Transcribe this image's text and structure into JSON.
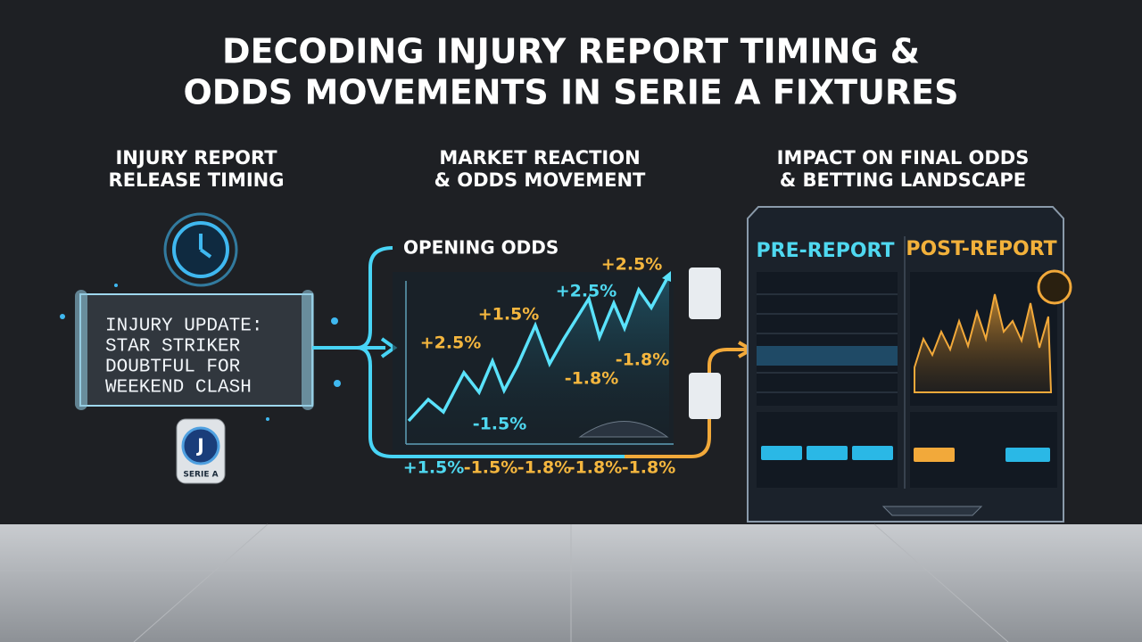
{
  "title_lines": [
    "DECODING INJURY REPORT TIMING &",
    "ODDS MOVEMENTS IN SERIE A FIXTURES"
  ],
  "sections": [
    {
      "heading_lines": [
        "INJURY REPORT",
        "RELEASE TIMING"
      ]
    },
    {
      "heading_lines": [
        "MARKET REACTION",
        "& ODDS MOVEMENT"
      ]
    },
    {
      "heading_lines": [
        "IMPACT ON FINAL ODDS",
        "& BETTING LANDSCAPE"
      ]
    }
  ],
  "injury_update": {
    "lines": [
      "INJURY UPDATE:",
      "STAR STRIKER",
      "DOUBTFUL FOR",
      "WEEKEND CLASH"
    ]
  },
  "badge": "SERIE A",
  "market_chart": {
    "label": "OPENING ODDS",
    "annotations": [
      {
        "text": "+2.5%",
        "color": "#f4b63e"
      },
      {
        "text": "+2.5%",
        "color": "#4fd8f0"
      },
      {
        "text": "+1.5%",
        "color": "#f4b63e"
      },
      {
        "text": "+2.5%",
        "color": "#f4b63e"
      },
      {
        "text": "-1.8%",
        "color": "#f4b63e"
      },
      {
        "text": "-1.8%",
        "color": "#f4b63e"
      },
      {
        "text": "-1.5%",
        "color": "#4fd8f0"
      }
    ],
    "bottom_row": [
      {
        "text": "+1.5%",
        "color": "#4fd8f0"
      },
      {
        "text": "-1.5%",
        "color": "#f4b63e"
      },
      {
        "text": "-1.8%",
        "color": "#f4b63e"
      },
      {
        "text": "-1.8%",
        "color": "#f4b63e"
      },
      {
        "text": "-1.8%",
        "color": "#f4b63e"
      }
    ]
  },
  "dashboard": {
    "pre_label": "PRE-REPORT",
    "post_label": "POST-REPORT"
  }
}
